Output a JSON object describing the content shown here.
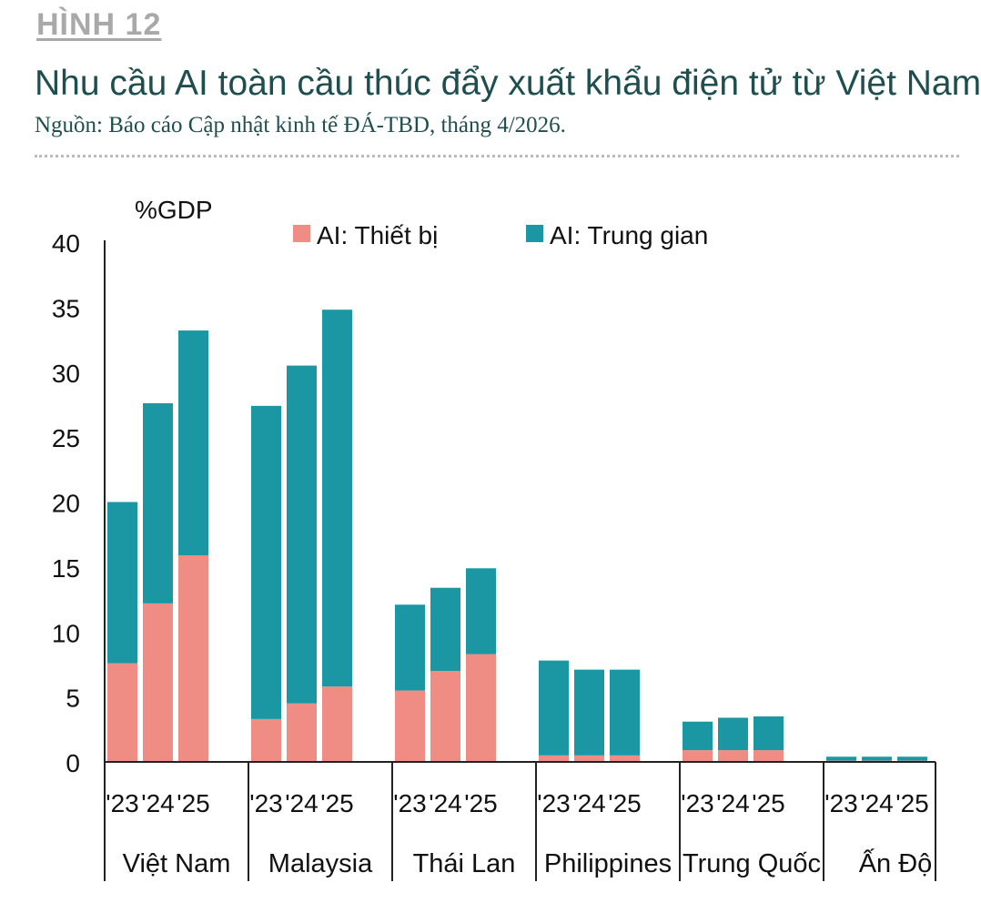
{
  "header": {
    "figure_label": "HÌNH 12",
    "title": "Nhu cầu AI toàn cầu thúc đẩy xuất khẩu điện tử từ Việt Nam",
    "source": "Nguồn: Báo cáo Cập nhật kinh tế ĐÁ-TBD, tháng 4/2026."
  },
  "colors": {
    "thiet_bi": "#ef8d84",
    "trung_gian": "#1a97a3",
    "title": "#1f4e4f"
  },
  "chart_data": {
    "type": "bar",
    "stacked": true,
    "ylabel": "%GDP",
    "ylim": [
      0,
      40
    ],
    "yticks": [
      0,
      5,
      10,
      15,
      20,
      25,
      30,
      35,
      40
    ],
    "legend_position": "top",
    "grid": false,
    "year_labels": [
      "'23",
      "'24",
      "'25"
    ],
    "groups": [
      "Việt Nam",
      "Malaysia",
      "Thái Lan",
      "Philippines",
      "Trung Quốc",
      "Ấn Độ"
    ],
    "series": [
      {
        "name": "AI: Thiết bị",
        "color": "#ef8d84",
        "values": [
          [
            7.6,
            12.2,
            15.9
          ],
          [
            3.3,
            4.5,
            5.8
          ],
          [
            5.5,
            7.0,
            8.3
          ],
          [
            0.5,
            0.5,
            0.5
          ],
          [
            0.9,
            0.9,
            0.9
          ],
          [
            0.1,
            0.1,
            0.1
          ]
        ]
      },
      {
        "name": "AI: Trung gian",
        "color": "#1a97a3",
        "values": [
          [
            12.4,
            15.4,
            17.3
          ],
          [
            24.1,
            26.0,
            29.0
          ],
          [
            6.6,
            6.4,
            6.6
          ],
          [
            7.3,
            6.6,
            6.6
          ],
          [
            2.2,
            2.5,
            2.6
          ],
          [
            0.3,
            0.3,
            0.3
          ]
        ]
      }
    ]
  }
}
